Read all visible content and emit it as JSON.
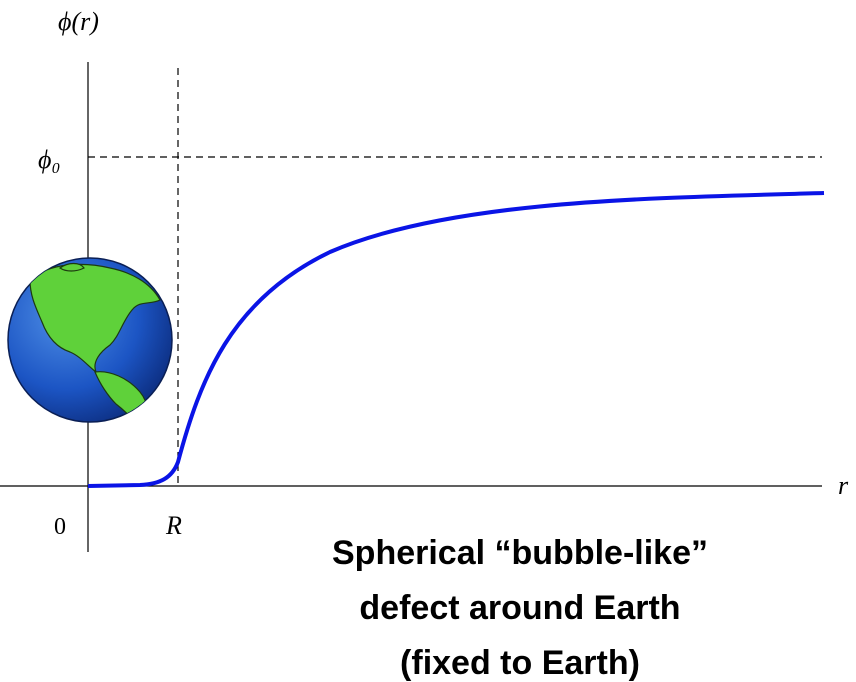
{
  "axes": {
    "y_label": "ϕ(r)",
    "x_label": "r",
    "level_label": "ϕ₀",
    "origin_label": "0",
    "radius_label": "R"
  },
  "caption": [
    "Spherical “bubble-like”",
    "defect around Earth",
    "(fixed to Earth)"
  ]
}
